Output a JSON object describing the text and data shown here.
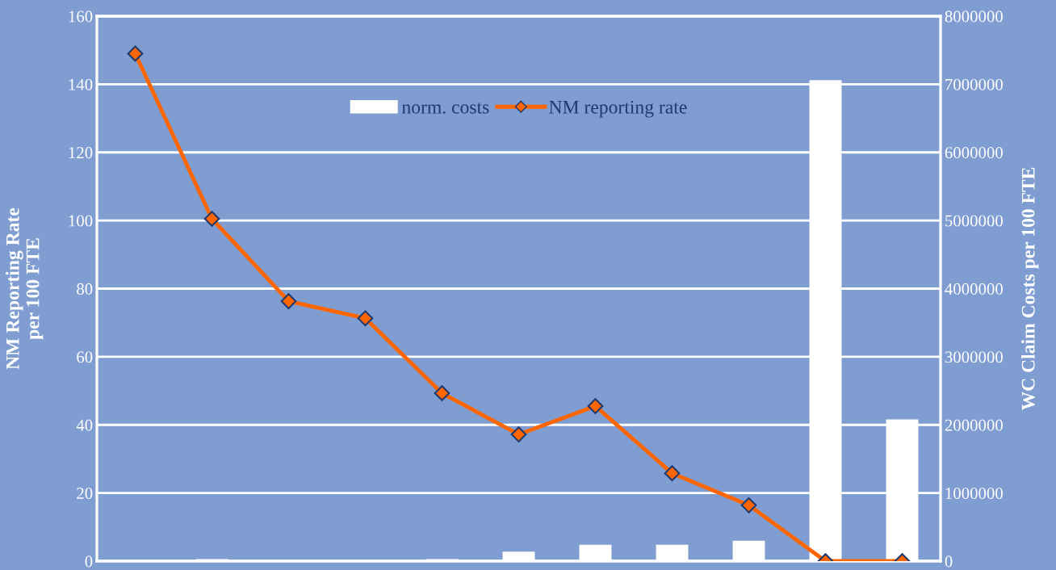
{
  "chart_data": {
    "type": "bar",
    "categories": [
      null,
      null,
      null,
      null,
      null,
      null,
      null,
      null,
      null,
      null,
      null
    ],
    "ylabel": "NM Reporting Rate\nper 100 FTE",
    "y2label": "WC Claim Costs per 100 FTE",
    "ylim": [
      0,
      160
    ],
    "yticks": [
      0,
      20,
      40,
      60,
      80,
      100,
      120,
      140,
      160
    ],
    "y2lim": [
      0,
      8000000
    ],
    "y2ticks": [
      0,
      1000000,
      2000000,
      3000000,
      4000000,
      5000000,
      6000000,
      7000000,
      8000000
    ],
    "grid": "y",
    "legend": "top",
    "marker": "diamond",
    "series": [
      {
        "name": "norm. costs",
        "axis": "y2",
        "color": "#ffffff",
        "values": [
          0,
          30000,
          0,
          0,
          30000,
          140000,
          240000,
          240000,
          300000,
          7060000,
          2080000
        ]
      },
      {
        "name": "NM reporting rate",
        "type": "line",
        "axis": "y",
        "color": "#ff6600",
        "values": [
          149,
          100.5,
          76.3,
          71.3,
          49.3,
          37.2,
          45.5,
          25.8,
          16.4,
          0,
          0
        ]
      }
    ]
  }
}
